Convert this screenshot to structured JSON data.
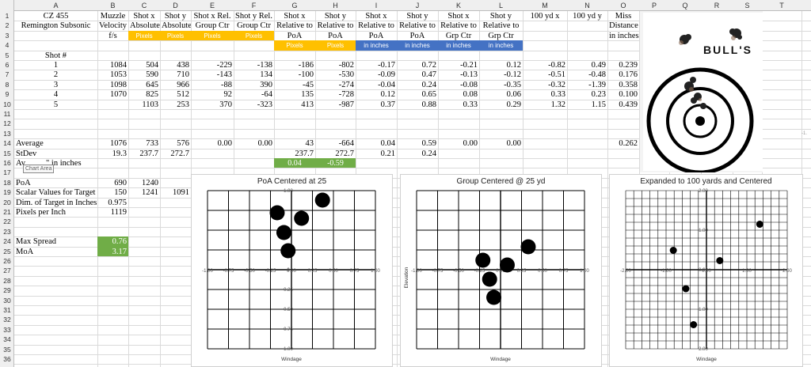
{
  "columns": [
    "A",
    "B",
    "C",
    "D",
    "E",
    "F",
    "G",
    "H",
    "I",
    "J",
    "K",
    "L",
    "M",
    "N",
    "O",
    "P",
    "Q",
    "R",
    "S",
    "T"
  ],
  "rows": [
    "1",
    "2",
    "3",
    "4",
    "5",
    "6",
    "7",
    "8",
    "9",
    "10",
    "11",
    "12",
    "13",
    "14",
    "15",
    "16",
    "17",
    "18",
    "19",
    "20",
    "21",
    "22",
    "23",
    "24",
    "25",
    "26",
    "27",
    "28",
    "29",
    "30",
    "31",
    "32",
    "33",
    "34",
    "35",
    "36"
  ],
  "headers": {
    "r1": {
      "A": "CZ 455",
      "B": "Muzzle",
      "C": "Shot x",
      "D": "Shot y",
      "E": "Shot x Rel.",
      "F": "Shot y Rel.",
      "G": "Shot x",
      "H": "Shot y",
      "I": "Shot x",
      "J": "Shot y",
      "K": "Shot x",
      "L": "Shot y",
      "M": "100 yd x",
      "N": "100 yd y",
      "O": "Miss"
    },
    "r2": {
      "A": "Remington Subsonic",
      "B": "Velocity",
      "C": "Absolute",
      "D": "Absolute",
      "E": "Group Ctr",
      "F": "Group Ctr",
      "G": "Relative to",
      "H": "Relative to",
      "I": "Relative to",
      "J": "Relative to",
      "K": "Relative to",
      "L": "Relative to",
      "O": "Distance"
    },
    "r3": {
      "B": "f/s",
      "C": "Pixels",
      "D": "Pixels",
      "E": "Pixels",
      "F": "Pixels",
      "G": "PoA",
      "H": "PoA",
      "I": "PoA",
      "J": "PoA",
      "K": "Grp Ctr",
      "L": "Grp Ctr",
      "O": "in inches"
    },
    "r4": {
      "G": "Pixels",
      "H": "Pixels",
      "I": "in inches",
      "J": "in inches",
      "K": "in inches",
      "L": "in inches"
    },
    "r5": {
      "A": "Shot #"
    }
  },
  "shots": [
    [
      "1",
      "1084",
      "504",
      "438",
      "-229",
      "-138",
      "-186",
      "-802",
      "-0.17",
      "0.72",
      "-0.21",
      "0.12",
      "-0.82",
      "0.49",
      "0.239"
    ],
    [
      "2",
      "1053",
      "590",
      "710",
      "-143",
      "134",
      "-100",
      "-530",
      "-0.09",
      "0.47",
      "-0.13",
      "-0.12",
      "-0.51",
      "-0.48",
      "0.176"
    ],
    [
      "3",
      "1098",
      "645",
      "966",
      "-88",
      "390",
      "-45",
      "-274",
      "-0.04",
      "0.24",
      "-0.08",
      "-0.35",
      "-0.32",
      "-1.39",
      "0.358"
    ],
    [
      "4",
      "1070",
      "825",
      "512",
      "92",
      "-64",
      "135",
      "-728",
      "0.12",
      "0.65",
      "0.08",
      "0.06",
      "0.33",
      "0.23",
      "0.100"
    ],
    [
      "5",
      "",
      "1103",
      "253",
      "370",
      "-323",
      "413",
      "-987",
      "0.37",
      "0.88",
      "0.33",
      "0.29",
      "1.32",
      "1.15",
      "0.439"
    ]
  ],
  "average": {
    "label": "Average",
    "B": "1076",
    "C": "733",
    "D": "576",
    "E": "0.00",
    "F": "0.00",
    "G": "43",
    "H": "-664",
    "I": "0.04",
    "J": "0.59",
    "K": "0.00",
    "L": "0.00",
    "O": "0.262"
  },
  "stdev": {
    "label": "StDev",
    "B": "19.3",
    "C": "237.7",
    "D": "272.7",
    "G": "237.7",
    "H": "272.7",
    "I": "0.21",
    "J": "0.24"
  },
  "row16": {
    "label": "Av",
    "label_tail": "\" in inches",
    "G": "0.04",
    "H": "-0.59"
  },
  "poa": {
    "label": "PoA",
    "B": "690",
    "C": "1240"
  },
  "scalar": {
    "label": "Scalar Values for Target",
    "B": "150",
    "C": "1241",
    "D": "1091"
  },
  "dim": {
    "label": "Dim. of Target in Inches",
    "B": "0.975"
  },
  "ppi": {
    "label": "Pixels per Inch",
    "B": "1119"
  },
  "max_spread": {
    "label": "Max Spread",
    "B": "0.76"
  },
  "moa": {
    "label": "MoA",
    "B": "3.17"
  },
  "tooltip": "Chart Area",
  "edge_mark": "-1.",
  "target_image": {
    "text": "BULL'S",
    "description_colors": {
      "ring": "#000000",
      "bg": "#ffffff"
    }
  },
  "colors": {
    "orange": "#ffc000",
    "blue": "#4472c4",
    "green": "#70ad47",
    "grid": "#dadada",
    "header_bg": "#efefef"
  },
  "chart_data": [
    {
      "type": "scatter",
      "title": "PoA Centered at 25",
      "xlabel": "Windage",
      "ylabel": "",
      "xlim": [
        -1.0,
        1.0
      ],
      "ylim": [
        -1.0,
        1.0
      ],
      "xticks": [
        "-1.00",
        "-0.75",
        "-0.50",
        "-0.25",
        "0.00",
        "0.25",
        "0.50",
        "0.75",
        "1.00"
      ],
      "yticks": [
        "1.00",
        "0.75",
        "0.50",
        "0.25",
        "0",
        "-0.25",
        "-0.50",
        "-0.75",
        "-1.00"
      ],
      "yticks_shown": [
        "1.00",
        "",
        "",
        "",
        "0",
        "0.25",
        "0.50",
        "0.75",
        "1.00"
      ],
      "x": [
        -0.17,
        -0.09,
        -0.04,
        0.12,
        0.37
      ],
      "y": [
        0.72,
        0.47,
        0.24,
        0.65,
        0.88
      ]
    },
    {
      "type": "scatter",
      "title": "Group Centered @ 25 yd",
      "xlabel": "Windage",
      "ylabel": "Elevation",
      "xlim": [
        -1.0,
        1.0
      ],
      "ylim": [
        -1.0,
        1.0
      ],
      "xticks": [
        "-1.00",
        "-0.75",
        "-0.50",
        "-0.25",
        "0.00",
        "0.25",
        "0.50",
        "0.75",
        "1.00"
      ],
      "x": [
        -0.21,
        -0.13,
        -0.08,
        0.08,
        0.33
      ],
      "y": [
        0.12,
        -0.12,
        -0.35,
        0.06,
        0.29
      ]
    },
    {
      "type": "scatter",
      "title": "Expanded to 100 yards and Centered",
      "xlabel": "Windage",
      "ylabel": "",
      "xlim": [
        -2.0,
        2.0
      ],
      "ylim": [
        -2.0,
        2.0
      ],
      "xticks": [
        "-2.00",
        "-1.00",
        "0.00",
        "1.00",
        "2.00"
      ],
      "yticks": [
        "2.00",
        "1.00",
        "0.00",
        "1.00",
        "2.00"
      ],
      "x": [
        -0.82,
        -0.51,
        -0.32,
        0.33,
        1.32
      ],
      "y": [
        0.49,
        -0.48,
        -1.39,
        0.23,
        1.15
      ]
    }
  ]
}
